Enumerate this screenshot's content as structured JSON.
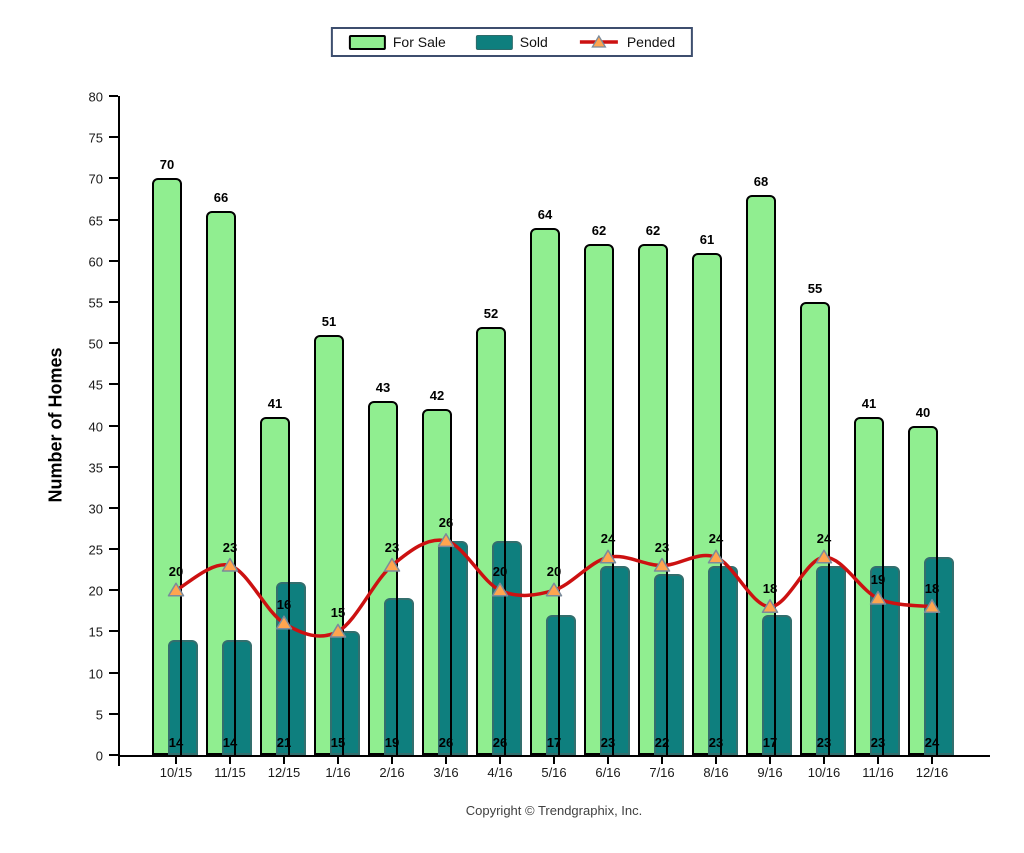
{
  "chart_data": {
    "type": "bar",
    "categories": [
      "10/15",
      "11/15",
      "12/15",
      "1/16",
      "2/16",
      "3/16",
      "4/16",
      "5/16",
      "6/16",
      "7/16",
      "8/16",
      "9/16",
      "10/16",
      "11/16",
      "12/16"
    ],
    "series": [
      {
        "name": "For Sale",
        "type": "bar",
        "color": "#90EE90",
        "border_color": "#000000",
        "values": [
          70,
          66,
          41,
          51,
          43,
          42,
          52,
          64,
          62,
          62,
          61,
          68,
          55,
          41,
          40
        ]
      },
      {
        "name": "Sold",
        "type": "bar",
        "color": "#0E7F7E",
        "border_color": "#336F6E",
        "values": [
          14,
          14,
          21,
          15,
          19,
          26,
          26,
          17,
          23,
          22,
          23,
          17,
          23,
          23,
          24
        ]
      },
      {
        "name": "Pended",
        "type": "line",
        "color": "#CC1111",
        "marker": "triangle",
        "marker_fill": "#FFA54F",
        "marker_stroke": "#7B8B9B",
        "values": [
          20,
          23,
          16,
          15,
          23,
          26,
          20,
          20,
          24,
          23,
          24,
          18,
          24,
          19,
          18
        ]
      }
    ],
    "title": "",
    "xlabel": "",
    "ylabel": "Number of Homes",
    "ylim": [
      0,
      80
    ],
    "ytick_step": 5,
    "grid": false,
    "legend_position": "top-center"
  },
  "legend": {
    "items": [
      {
        "label": "For Sale",
        "swatch": "green-box-icon"
      },
      {
        "label": "Sold",
        "swatch": "teal-box-icon"
      },
      {
        "label": "Pended",
        "swatch": "red-line-triangle-icon"
      }
    ]
  },
  "footer": {
    "copyright": "Copyright © Trendgraphix, Inc."
  }
}
